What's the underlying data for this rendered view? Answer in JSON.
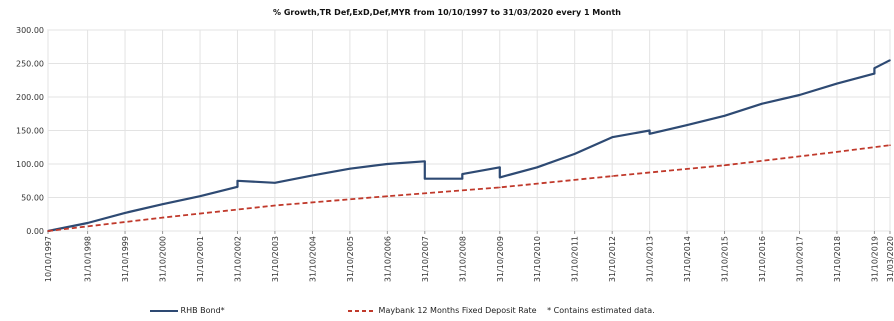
{
  "chart_data": {
    "type": "line",
    "title": "% Growth,TR Def,ExD,Def,MYR from 10/10/1997 to 31/03/2020 every 1 Month",
    "xlabel": "",
    "ylabel": "",
    "ylim": [
      0,
      300
    ],
    "y_ticks": [
      "0.00",
      "50.00",
      "100.00",
      "150.00",
      "200.00",
      "250.00",
      "300.00"
    ],
    "x_ticks": [
      "10/10/1997",
      "31/10/1998",
      "31/10/1999",
      "31/10/2000",
      "31/10/2001",
      "31/10/2002",
      "31/10/2003",
      "31/10/2004",
      "31/10/2005",
      "31/10/2006",
      "31/10/2007",
      "31/10/2008",
      "31/10/2009",
      "31/10/2010",
      "31/10/2011",
      "31/10/2012",
      "31/10/2013",
      "31/10/2014",
      "31/10/2015",
      "31/10/2016",
      "31/10/2017",
      "31/10/2018",
      "31/10/2019",
      "31/03/2020"
    ],
    "grid": true,
    "legend_position": "bottom",
    "series": [
      {
        "name": "RHB Bond*",
        "color": "#2e4a73",
        "style": "solid",
        "points": [
          [
            "10/10/1997",
            0
          ],
          [
            "31/10/1998",
            12
          ],
          [
            "31/10/1999",
            27
          ],
          [
            "31/10/2000",
            40
          ],
          [
            "31/10/2001",
            52
          ],
          [
            "31/10/2002",
            66
          ],
          [
            "31/10/2002",
            75
          ],
          [
            "31/10/2003",
            72
          ],
          [
            "31/10/2004",
            83
          ],
          [
            "31/10/2005",
            93
          ],
          [
            "31/10/2006",
            100
          ],
          [
            "31/10/2007",
            104
          ],
          [
            "31/10/2007",
            78
          ],
          [
            "31/10/2008",
            78
          ],
          [
            "31/10/2008",
            85
          ],
          [
            "31/10/2009",
            95
          ],
          [
            "31/10/2009",
            80
          ],
          [
            "31/10/2010",
            95
          ],
          [
            "31/10/2011",
            115
          ],
          [
            "31/10/2012",
            140
          ],
          [
            "31/10/2013",
            150
          ],
          [
            "31/10/2013",
            145
          ],
          [
            "31/10/2014",
            158
          ],
          [
            "31/10/2015",
            172
          ],
          [
            "31/10/2016",
            190
          ],
          [
            "31/10/2017",
            203
          ],
          [
            "31/10/2018",
            220
          ],
          [
            "31/10/2019",
            235
          ],
          [
            "31/10/2019",
            243
          ],
          [
            "31/03/2020",
            255
          ]
        ]
      },
      {
        "name": "Maybank 12 Months Fixed Deposit Rate",
        "color": "#c0392b",
        "style": "dashed",
        "points": [
          [
            "10/10/1997",
            0
          ],
          [
            "31/10/2000",
            20
          ],
          [
            "31/10/2003",
            38
          ],
          [
            "31/10/2006",
            52
          ],
          [
            "31/10/2009",
            65
          ],
          [
            "31/10/2012",
            82
          ],
          [
            "31/10/2015",
            98
          ],
          [
            "31/10/2018",
            118
          ],
          [
            "31/03/2020",
            128
          ]
        ]
      }
    ],
    "note": "* Contains estimated data."
  }
}
